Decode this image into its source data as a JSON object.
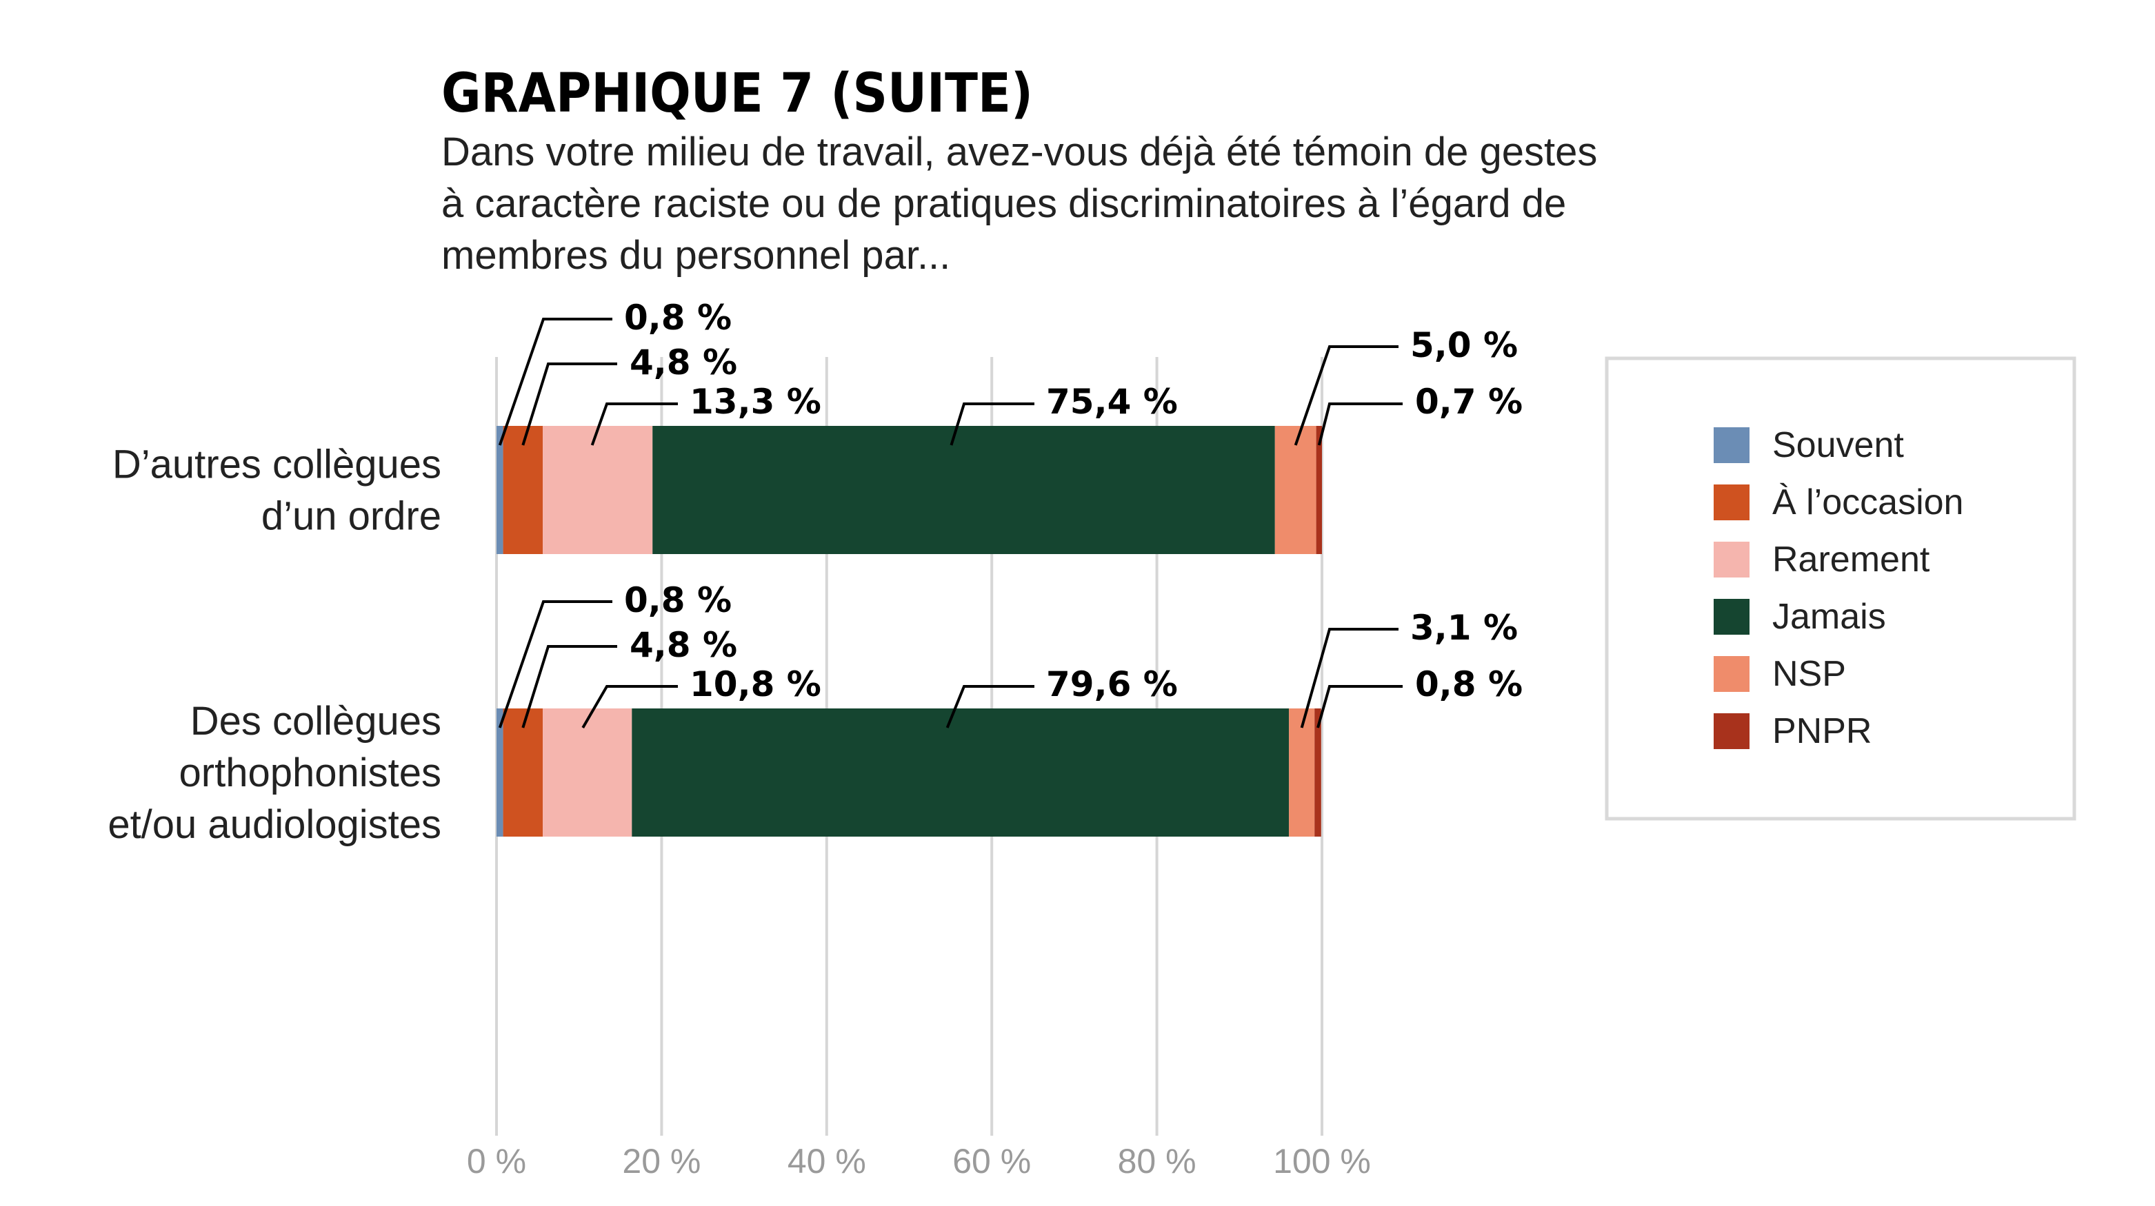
{
  "chart_data": {
    "type": "bar",
    "orientation": "horizontal",
    "stacked": true,
    "title": "GRAPHIQUE 7 (SUITE)",
    "subtitle_lines": [
      "Dans votre milieu de travail, avez-vous déjà été témoin de gestes",
      "à caractère raciste ou de pratiques discriminatoires à l’égard de",
      "membres du personnel par..."
    ],
    "categories": [
      [
        "D’autres collègues",
        "d’un ordre"
      ],
      [
        "Des collègues",
        "orthophonistes",
        "et/ou audiologistes"
      ]
    ],
    "series": [
      {
        "name": "Souvent",
        "color": "#6b8db5",
        "values": [
          0.8,
          0.8
        ],
        "labels": [
          "0,8 %",
          "0,8 %"
        ]
      },
      {
        "name": "À l’occasion",
        "color": "#cf5220",
        "values": [
          4.8,
          4.8
        ],
        "labels": [
          "4,8 %",
          "4,8 %"
        ]
      },
      {
        "name": "Rarement",
        "color": "#f5b5ae",
        "values": [
          13.3,
          10.8
        ],
        "labels": [
          "13,3 %",
          "10,8 %"
        ]
      },
      {
        "name": "Jamais",
        "color": "#154530",
        "values": [
          75.4,
          79.6
        ],
        "labels": [
          "75,4 %",
          "79,6 %"
        ]
      },
      {
        "name": "NSP",
        "color": "#ef8c6b",
        "values": [
          5.0,
          3.1
        ],
        "labels": [
          "5,0 %",
          "3,1 %"
        ]
      },
      {
        "name": "PNPR",
        "color": "#a8321c",
        "values": [
          0.7,
          0.8
        ],
        "labels": [
          "0,7 %",
          "0,8 %"
        ]
      }
    ],
    "x_ticks": [
      0,
      20,
      40,
      60,
      80,
      100
    ],
    "x_tick_labels": [
      "0 %",
      "20 %",
      "40 %",
      "60 %",
      "80 %",
      "100 %"
    ],
    "xlim": [
      0,
      100
    ],
    "grid": true,
    "legend_position": "right"
  }
}
